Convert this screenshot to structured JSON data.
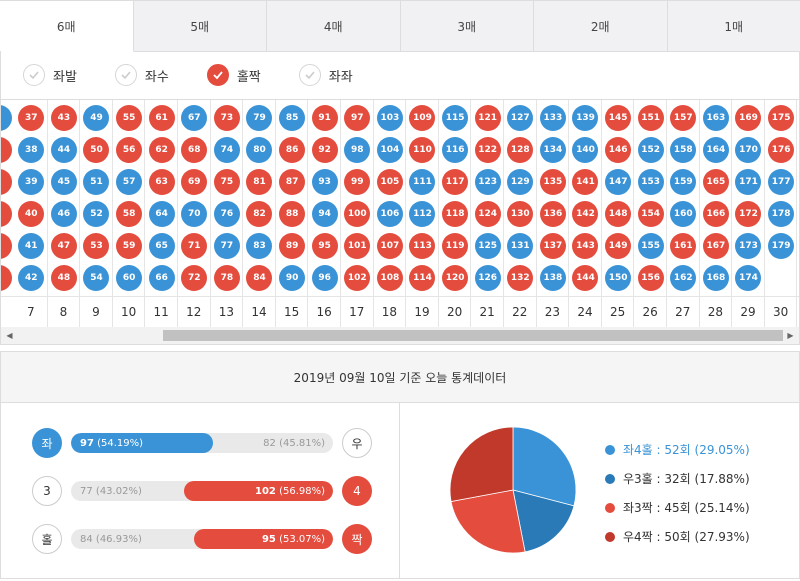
{
  "tabs": [
    {
      "label": "6매",
      "active": true
    },
    {
      "label": "5매",
      "active": false
    },
    {
      "label": "4매",
      "active": false
    },
    {
      "label": "3매",
      "active": false
    },
    {
      "label": "2매",
      "active": false
    },
    {
      "label": "1매",
      "active": false
    }
  ],
  "filters": [
    {
      "label": "좌발",
      "checked": false
    },
    {
      "label": "좌수",
      "checked": false
    },
    {
      "label": "홀짝",
      "checked": true
    },
    {
      "label": "좌좌",
      "checked": false
    }
  ],
  "grid": {
    "first_col_partial": [
      [
        "blue",
        null
      ],
      [
        "red",
        null
      ],
      [
        "red",
        null
      ],
      [
        "red",
        null
      ],
      [
        "red",
        null
      ],
      [
        "red",
        null
      ]
    ],
    "columns": [
      {
        "num": "7",
        "balls": [
          [
            "red",
            "37"
          ],
          [
            "blue",
            "38"
          ],
          [
            "blue",
            "39"
          ],
          [
            "red",
            "40"
          ],
          [
            "blue",
            "41"
          ],
          [
            "blue",
            "42"
          ]
        ]
      },
      {
        "num": "8",
        "balls": [
          [
            "red",
            "43"
          ],
          [
            "blue",
            "44"
          ],
          [
            "blue",
            "45"
          ],
          [
            "blue",
            "46"
          ],
          [
            "red",
            "47"
          ],
          [
            "red",
            "48"
          ]
        ]
      },
      {
        "num": "9",
        "balls": [
          [
            "blue",
            "49"
          ],
          [
            "red",
            "50"
          ],
          [
            "blue",
            "51"
          ],
          [
            "blue",
            "52"
          ],
          [
            "red",
            "53"
          ],
          [
            "blue",
            "54"
          ]
        ]
      },
      {
        "num": "10",
        "balls": [
          [
            "red",
            "55"
          ],
          [
            "red",
            "56"
          ],
          [
            "blue",
            "57"
          ],
          [
            "red",
            "58"
          ],
          [
            "red",
            "59"
          ],
          [
            "blue",
            "60"
          ]
        ]
      },
      {
        "num": "11",
        "balls": [
          [
            "red",
            "61"
          ],
          [
            "red",
            "62"
          ],
          [
            "red",
            "63"
          ],
          [
            "blue",
            "64"
          ],
          [
            "blue",
            "65"
          ],
          [
            "blue",
            "66"
          ]
        ]
      },
      {
        "num": "12",
        "balls": [
          [
            "blue",
            "67"
          ],
          [
            "red",
            "68"
          ],
          [
            "red",
            "69"
          ],
          [
            "blue",
            "70"
          ],
          [
            "red",
            "71"
          ],
          [
            "red",
            "72"
          ]
        ]
      },
      {
        "num": "13",
        "balls": [
          [
            "red",
            "73"
          ],
          [
            "blue",
            "74"
          ],
          [
            "red",
            "75"
          ],
          [
            "blue",
            "76"
          ],
          [
            "blue",
            "77"
          ],
          [
            "red",
            "78"
          ]
        ]
      },
      {
        "num": "14",
        "balls": [
          [
            "blue",
            "79"
          ],
          [
            "blue",
            "80"
          ],
          [
            "red",
            "81"
          ],
          [
            "red",
            "82"
          ],
          [
            "blue",
            "83"
          ],
          [
            "red",
            "84"
          ]
        ]
      },
      {
        "num": "15",
        "balls": [
          [
            "blue",
            "85"
          ],
          [
            "red",
            "86"
          ],
          [
            "red",
            "87"
          ],
          [
            "red",
            "88"
          ],
          [
            "red",
            "89"
          ],
          [
            "blue",
            "90"
          ]
        ]
      },
      {
        "num": "16",
        "balls": [
          [
            "red",
            "91"
          ],
          [
            "red",
            "92"
          ],
          [
            "blue",
            "93"
          ],
          [
            "blue",
            "94"
          ],
          [
            "red",
            "95"
          ],
          [
            "blue",
            "96"
          ]
        ]
      },
      {
        "num": "17",
        "balls": [
          [
            "red",
            "97"
          ],
          [
            "blue",
            "98"
          ],
          [
            "red",
            "99"
          ],
          [
            "red",
            "100"
          ],
          [
            "red",
            "101"
          ],
          [
            "red",
            "102"
          ]
        ]
      },
      {
        "num": "18",
        "balls": [
          [
            "blue",
            "103"
          ],
          [
            "blue",
            "104"
          ],
          [
            "red",
            "105"
          ],
          [
            "blue",
            "106"
          ],
          [
            "red",
            "107"
          ],
          [
            "red",
            "108"
          ]
        ]
      },
      {
        "num": "19",
        "balls": [
          [
            "red",
            "109"
          ],
          [
            "red",
            "110"
          ],
          [
            "blue",
            "111"
          ],
          [
            "blue",
            "112"
          ],
          [
            "red",
            "113"
          ],
          [
            "red",
            "114"
          ]
        ]
      },
      {
        "num": "20",
        "balls": [
          [
            "blue",
            "115"
          ],
          [
            "blue",
            "116"
          ],
          [
            "red",
            "117"
          ],
          [
            "red",
            "118"
          ],
          [
            "red",
            "119"
          ],
          [
            "red",
            "120"
          ]
        ]
      },
      {
        "num": "21",
        "balls": [
          [
            "red",
            "121"
          ],
          [
            "red",
            "122"
          ],
          [
            "blue",
            "123"
          ],
          [
            "red",
            "124"
          ],
          [
            "blue",
            "125"
          ],
          [
            "blue",
            "126"
          ]
        ]
      },
      {
        "num": "22",
        "balls": [
          [
            "blue",
            "127"
          ],
          [
            "red",
            "128"
          ],
          [
            "blue",
            "129"
          ],
          [
            "red",
            "130"
          ],
          [
            "blue",
            "131"
          ],
          [
            "red",
            "132"
          ]
        ]
      },
      {
        "num": "23",
        "balls": [
          [
            "blue",
            "133"
          ],
          [
            "blue",
            "134"
          ],
          [
            "red",
            "135"
          ],
          [
            "red",
            "136"
          ],
          [
            "red",
            "137"
          ],
          [
            "blue",
            "138"
          ]
        ]
      },
      {
        "num": "24",
        "balls": [
          [
            "blue",
            "139"
          ],
          [
            "blue",
            "140"
          ],
          [
            "red",
            "141"
          ],
          [
            "red",
            "142"
          ],
          [
            "red",
            "143"
          ],
          [
            "red",
            "144"
          ]
        ]
      },
      {
        "num": "25",
        "balls": [
          [
            "red",
            "145"
          ],
          [
            "red",
            "146"
          ],
          [
            "blue",
            "147"
          ],
          [
            "red",
            "148"
          ],
          [
            "red",
            "149"
          ],
          [
            "blue",
            "150"
          ]
        ]
      },
      {
        "num": "26",
        "balls": [
          [
            "red",
            "151"
          ],
          [
            "blue",
            "152"
          ],
          [
            "blue",
            "153"
          ],
          [
            "red",
            "154"
          ],
          [
            "blue",
            "155"
          ],
          [
            "red",
            "156"
          ]
        ]
      },
      {
        "num": "27",
        "balls": [
          [
            "red",
            "157"
          ],
          [
            "blue",
            "158"
          ],
          [
            "blue",
            "159"
          ],
          [
            "blue",
            "160"
          ],
          [
            "red",
            "161"
          ],
          [
            "blue",
            "162"
          ]
        ]
      },
      {
        "num": "28",
        "balls": [
          [
            "blue",
            "163"
          ],
          [
            "blue",
            "164"
          ],
          [
            "red",
            "165"
          ],
          [
            "red",
            "166"
          ],
          [
            "red",
            "167"
          ],
          [
            "blue",
            "168"
          ]
        ]
      },
      {
        "num": "29",
        "balls": [
          [
            "red",
            "169"
          ],
          [
            "blue",
            "170"
          ],
          [
            "blue",
            "171"
          ],
          [
            "red",
            "172"
          ],
          [
            "blue",
            "173"
          ],
          [
            "blue",
            "174"
          ]
        ]
      },
      {
        "num": "30",
        "balls": [
          [
            "red",
            "175"
          ],
          [
            "red",
            "176"
          ],
          [
            "blue",
            "177"
          ],
          [
            "blue",
            "178"
          ],
          [
            "blue",
            "179"
          ],
          null
        ]
      }
    ]
  },
  "stats": {
    "header": "2019년 09월 10일 기준 오늘 통계데이터",
    "rows": [
      {
        "left_label": "좌",
        "left_style": "blue",
        "right_label": "우",
        "right_style": "white",
        "left_value": "97",
        "left_pct": "(54.19%)",
        "right_value": "82",
        "right_pct": "(45.81%)",
        "left_fraction": 0.5419,
        "right_fraction": 0,
        "fill_side": "left"
      },
      {
        "left_label": "3",
        "left_style": "white",
        "right_label": "4",
        "right_style": "red",
        "left_value": "77",
        "left_pct": "(43.02%)",
        "right_value": "102",
        "right_pct": "(56.98%)",
        "left_fraction": 0,
        "right_fraction": 0.5698,
        "fill_side": "right"
      },
      {
        "left_label": "홀",
        "left_style": "white",
        "right_label": "짝",
        "right_style": "red",
        "left_value": "84",
        "left_pct": "(46.93%)",
        "right_value": "95",
        "right_pct": "(53.07%)",
        "left_fraction": 0,
        "right_fraction": 0.5307,
        "fill_side": "right"
      }
    ],
    "pie": [
      {
        "label": "좌4홀 : 52회 (29.05%)",
        "value": 29.05,
        "color": "#3a93d6",
        "highlight": true
      },
      {
        "label": "우3홀 : 32회 (17.88%)",
        "value": 17.88,
        "color": "#2a7ab8",
        "highlight": false
      },
      {
        "label": "좌3짝 : 45회 (25.14%)",
        "value": 25.14,
        "color": "#e44c3e",
        "highlight": false
      },
      {
        "label": "우4짝 : 50회 (27.93%)",
        "value": 27.93,
        "color": "#c0392b",
        "highlight": false
      }
    ]
  }
}
